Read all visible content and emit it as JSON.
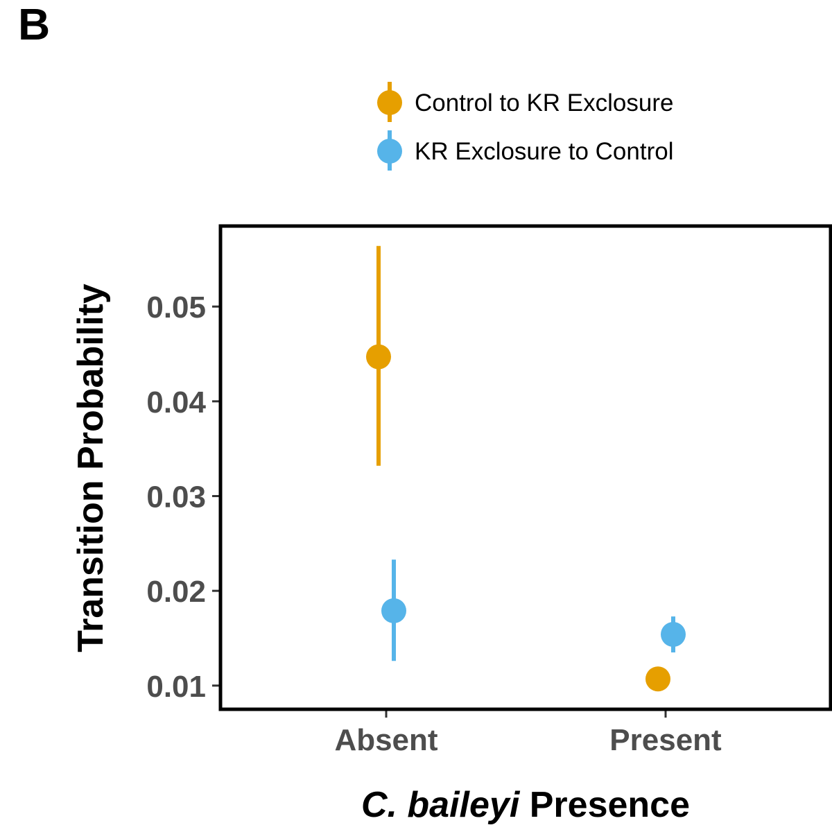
{
  "panel_label": "B",
  "colors": {
    "series_1": "#E69F00",
    "series_2": "#56B4E9",
    "axis": "#000000",
    "tick_text": "#4d4d4d"
  },
  "chart_data": {
    "type": "scatter",
    "categories": [
      "Absent",
      "Present"
    ],
    "series": [
      {
        "name": "Control to KR Exclosure",
        "color": "#E69F00",
        "values": [
          0.0447,
          0.0107
        ],
        "lower": [
          0.0332,
          0.0107
        ],
        "upper": [
          0.0564,
          0.0107
        ]
      },
      {
        "name": "KR Exclosure to Control",
        "color": "#56B4E9",
        "values": [
          0.0179,
          0.0154
        ],
        "lower": [
          0.0126,
          0.0135
        ],
        "upper": [
          0.0233,
          0.0173
        ]
      }
    ],
    "ylabel": "Transition Probability",
    "xlabel_italic": "C. baileyi",
    "xlabel_rest": " Presence",
    "yticks": [
      0.01,
      0.02,
      0.03,
      0.04,
      0.05
    ],
    "ytick_labels": [
      "0.01",
      "0.02",
      "0.03",
      "0.04",
      "0.05"
    ],
    "ylim": [
      0.0075,
      0.0585
    ],
    "legend_position": "top",
    "grid": false
  }
}
